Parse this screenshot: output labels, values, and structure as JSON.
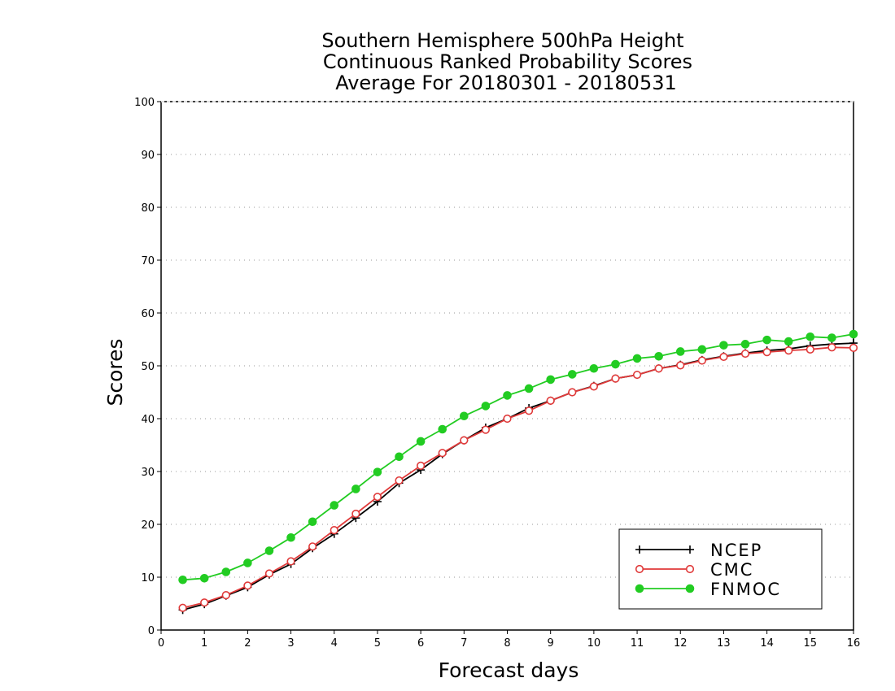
{
  "chart_data": {
    "type": "line",
    "title": [
      "Southern Hemisphere 500hPa Height",
      "Continuous Ranked Probability Scores",
      "Average For 20180301 - 20180531"
    ],
    "xlabel": "Forecast days",
    "ylabel": "Scores",
    "xlim": [
      0,
      16
    ],
    "ylim": [
      0,
      100
    ],
    "x_ticks": [
      "0",
      "1",
      "2",
      "3",
      "4",
      "5",
      "6",
      "7",
      "8",
      "9",
      "10",
      "11",
      "12",
      "13",
      "14",
      "15",
      "16"
    ],
    "y_ticks": [
      "0",
      "10",
      "20",
      "30",
      "40",
      "50",
      "60",
      "70",
      "80",
      "90",
      "100"
    ],
    "grid": true,
    "legend_position": "bottom-right",
    "x": [
      0.5,
      1,
      1.5,
      2,
      2.5,
      3,
      3.5,
      4,
      4.5,
      5,
      5.5,
      6,
      6.5,
      7,
      7.5,
      8,
      8.5,
      9,
      9.5,
      10,
      10.5,
      11,
      11.5,
      12,
      12.5,
      13,
      13.5,
      14,
      14.5,
      15,
      15.5,
      16
    ],
    "series": [
      {
        "name": "NCEP",
        "color": "#000000",
        "marker": "plus",
        "values": [
          3.8,
          4.9,
          6.5,
          8.1,
          10.5,
          12.5,
          15.5,
          18.2,
          21.2,
          24.3,
          27.8,
          30.3,
          33.3,
          35.9,
          38.3,
          40.0,
          42.0,
          43.4,
          45.0,
          46.2,
          47.6,
          48.3,
          49.5,
          50.2,
          51.1,
          51.8,
          52.4,
          52.9,
          53.2,
          53.8,
          54.1,
          54.3
        ]
      },
      {
        "name": "CMC",
        "color": "#e03a3a",
        "marker": "open-circle",
        "values": [
          4.2,
          5.2,
          6.6,
          8.4,
          10.7,
          13.0,
          15.8,
          18.9,
          22.0,
          25.2,
          28.3,
          31.1,
          33.5,
          35.9,
          37.9,
          40.0,
          41.5,
          43.4,
          45.0,
          46.1,
          47.6,
          48.3,
          49.5,
          50.1,
          51.0,
          51.7,
          52.3,
          52.6,
          52.9,
          53.1,
          53.5,
          53.4
        ]
      },
      {
        "name": "FNMOC",
        "color": "#22cc22",
        "marker": "filled-circle",
        "values": [
          9.5,
          9.8,
          11.0,
          12.7,
          15.0,
          17.5,
          20.5,
          23.6,
          26.7,
          29.9,
          32.8,
          35.7,
          38.0,
          40.5,
          42.4,
          44.4,
          45.7,
          47.4,
          48.4,
          49.5,
          50.3,
          51.4,
          51.8,
          52.7,
          53.1,
          53.9,
          54.1,
          54.9,
          54.6,
          55.5,
          55.3,
          56.0
        ]
      }
    ]
  }
}
